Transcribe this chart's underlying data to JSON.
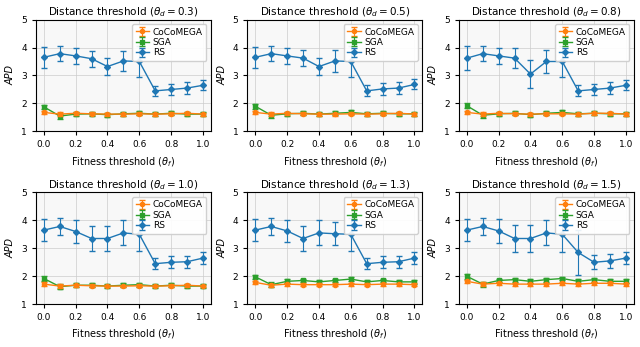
{
  "subplots": [
    {
      "title": "Distance threshold ($\\theta_d = 0.3$)",
      "x": [
        0.0,
        0.1,
        0.2,
        0.3,
        0.4,
        0.5,
        0.6,
        0.7,
        0.8,
        0.9,
        1.0
      ],
      "cocoemega_y": [
        1.68,
        1.62,
        1.65,
        1.63,
        1.62,
        1.62,
        1.63,
        1.62,
        1.63,
        1.65,
        1.62
      ],
      "cocoemega_err": [
        0.06,
        0.06,
        0.05,
        0.05,
        0.05,
        0.05,
        0.05,
        0.05,
        0.05,
        0.05,
        0.05
      ],
      "sga_y": [
        1.88,
        1.55,
        1.62,
        1.63,
        1.6,
        1.63,
        1.65,
        1.62,
        1.65,
        1.62,
        1.62
      ],
      "sga_err": [
        0.08,
        0.09,
        0.07,
        0.07,
        0.07,
        0.07,
        0.07,
        0.07,
        0.07,
        0.07,
        0.07
      ],
      "rs_y": [
        3.65,
        3.78,
        3.7,
        3.6,
        3.32,
        3.52,
        3.5,
        2.45,
        2.5,
        2.55,
        2.65
      ],
      "rs_err": [
        0.38,
        0.28,
        0.28,
        0.28,
        0.3,
        0.35,
        0.55,
        0.18,
        0.2,
        0.2,
        0.18
      ]
    },
    {
      "title": "Distance threshold ($\\theta_d = 0.5$)",
      "x": [
        0.0,
        0.1,
        0.2,
        0.3,
        0.4,
        0.5,
        0.6,
        0.7,
        0.8,
        0.9,
        1.0
      ],
      "cocoemega_y": [
        1.68,
        1.62,
        1.65,
        1.63,
        1.62,
        1.62,
        1.63,
        1.62,
        1.63,
        1.65,
        1.62
      ],
      "cocoemega_err": [
        0.06,
        0.06,
        0.05,
        0.05,
        0.05,
        0.05,
        0.05,
        0.05,
        0.05,
        0.05,
        0.05
      ],
      "sga_y": [
        1.9,
        1.58,
        1.63,
        1.65,
        1.62,
        1.65,
        1.68,
        1.63,
        1.65,
        1.63,
        1.63
      ],
      "sga_err": [
        0.08,
        0.09,
        0.07,
        0.07,
        0.07,
        0.07,
        0.07,
        0.07,
        0.07,
        0.07,
        0.07
      ],
      "rs_y": [
        3.65,
        3.78,
        3.7,
        3.62,
        3.32,
        3.52,
        3.5,
        2.45,
        2.52,
        2.55,
        2.68
      ],
      "rs_err": [
        0.38,
        0.28,
        0.3,
        0.28,
        0.32,
        0.4,
        0.55,
        0.2,
        0.2,
        0.2,
        0.18
      ]
    },
    {
      "title": "Distance threshold ($\\theta_d = 0.8$)",
      "x": [
        0.0,
        0.1,
        0.2,
        0.3,
        0.4,
        0.5,
        0.6,
        0.7,
        0.8,
        0.9,
        1.0
      ],
      "cocoemega_y": [
        1.68,
        1.62,
        1.65,
        1.63,
        1.62,
        1.63,
        1.63,
        1.62,
        1.65,
        1.65,
        1.62
      ],
      "cocoemega_err": [
        0.06,
        0.06,
        0.05,
        0.05,
        0.05,
        0.05,
        0.05,
        0.05,
        0.05,
        0.05,
        0.05
      ],
      "sga_y": [
        1.92,
        1.58,
        1.63,
        1.65,
        1.6,
        1.65,
        1.68,
        1.63,
        1.65,
        1.63,
        1.63
      ],
      "sga_err": [
        0.08,
        0.09,
        0.07,
        0.07,
        0.07,
        0.07,
        0.07,
        0.07,
        0.07,
        0.07,
        0.07
      ],
      "rs_y": [
        3.62,
        3.78,
        3.7,
        3.62,
        3.05,
        3.5,
        3.5,
        2.45,
        2.5,
        2.55,
        2.65
      ],
      "rs_err": [
        0.42,
        0.28,
        0.3,
        0.35,
        0.5,
        0.4,
        0.55,
        0.2,
        0.2,
        0.2,
        0.18
      ]
    },
    {
      "title": "Distance threshold ($\\theta_d = 1.0$)",
      "x": [
        0.0,
        0.1,
        0.2,
        0.3,
        0.4,
        0.5,
        0.6,
        0.7,
        0.8,
        0.9,
        1.0
      ],
      "cocoemega_y": [
        1.72,
        1.65,
        1.68,
        1.66,
        1.65,
        1.65,
        1.66,
        1.65,
        1.66,
        1.68,
        1.65
      ],
      "cocoemega_err": [
        0.06,
        0.06,
        0.05,
        0.05,
        0.05,
        0.05,
        0.05,
        0.05,
        0.05,
        0.05,
        0.05
      ],
      "sga_y": [
        1.92,
        1.63,
        1.68,
        1.68,
        1.65,
        1.68,
        1.7,
        1.65,
        1.68,
        1.65,
        1.65
      ],
      "sga_err": [
        0.08,
        0.09,
        0.07,
        0.07,
        0.07,
        0.07,
        0.07,
        0.07,
        0.07,
        0.07,
        0.07
      ],
      "rs_y": [
        3.65,
        3.78,
        3.6,
        3.35,
        3.35,
        3.55,
        3.5,
        2.45,
        2.5,
        2.52,
        2.65
      ],
      "rs_err": [
        0.4,
        0.3,
        0.4,
        0.45,
        0.45,
        0.45,
        0.6,
        0.2,
        0.22,
        0.22,
        0.2
      ]
    },
    {
      "title": "Distance threshold ($\\theta_d = 1.3$)",
      "x": [
        0.0,
        0.1,
        0.2,
        0.3,
        0.4,
        0.5,
        0.6,
        0.7,
        0.8,
        0.9,
        1.0
      ],
      "cocoemega_y": [
        1.78,
        1.68,
        1.72,
        1.7,
        1.7,
        1.7,
        1.72,
        1.7,
        1.72,
        1.72,
        1.7
      ],
      "cocoemega_err": [
        0.06,
        0.06,
        0.05,
        0.05,
        0.05,
        0.05,
        0.05,
        0.05,
        0.05,
        0.05,
        0.05
      ],
      "sga_y": [
        1.98,
        1.7,
        1.82,
        1.85,
        1.8,
        1.85,
        1.9,
        1.8,
        1.85,
        1.8,
        1.8
      ],
      "sga_err": [
        0.08,
        0.09,
        0.07,
        0.07,
        0.07,
        0.07,
        0.07,
        0.07,
        0.07,
        0.07,
        0.07
      ],
      "rs_y": [
        3.65,
        3.78,
        3.62,
        3.35,
        3.55,
        3.52,
        3.5,
        2.45,
        2.5,
        2.52,
        2.65
      ],
      "rs_err": [
        0.4,
        0.3,
        0.38,
        0.45,
        0.45,
        0.42,
        0.6,
        0.2,
        0.22,
        0.22,
        0.2
      ]
    },
    {
      "title": "Distance threshold ($\\theta_d = 1.5$)",
      "x": [
        0.0,
        0.1,
        0.2,
        0.3,
        0.4,
        0.5,
        0.6,
        0.7,
        0.8,
        0.9,
        1.0
      ],
      "cocoemega_y": [
        1.82,
        1.72,
        1.75,
        1.72,
        1.72,
        1.72,
        1.75,
        1.72,
        1.75,
        1.75,
        1.72
      ],
      "cocoemega_err": [
        0.06,
        0.06,
        0.05,
        0.05,
        0.05,
        0.05,
        0.05,
        0.05,
        0.05,
        0.05,
        0.05
      ],
      "sga_y": [
        2.0,
        1.72,
        1.85,
        1.88,
        1.82,
        1.88,
        1.92,
        1.82,
        1.88,
        1.82,
        1.82
      ],
      "sga_err": [
        0.08,
        0.09,
        0.07,
        0.07,
        0.07,
        0.07,
        0.07,
        0.07,
        0.07,
        0.07,
        0.07
      ],
      "rs_y": [
        3.65,
        3.78,
        3.62,
        3.35,
        3.35,
        3.55,
        3.5,
        2.85,
        2.5,
        2.55,
        2.65
      ],
      "rs_err": [
        0.4,
        0.3,
        0.42,
        0.48,
        0.48,
        0.45,
        0.62,
        0.8,
        0.25,
        0.25,
        0.22
      ]
    }
  ],
  "cocoemega_color": "#ff7f0e",
  "sga_color": "#2ca02c",
  "rs_color": "#1f77b4",
  "xlabel": "Fitness threshold ($\\theta_f$)",
  "ylabel": "APD",
  "ylim": [
    1,
    5
  ],
  "yticks": [
    1,
    2,
    3,
    4,
    5
  ],
  "xlim": [
    -0.05,
    1.05
  ],
  "xticks": [
    0.0,
    0.2,
    0.4,
    0.6,
    0.8,
    1.0
  ],
  "legend_labels": [
    "CoCoMEGA",
    "SGA",
    "RS"
  ],
  "marker_cocoemega": "o",
  "marker_sga": "s",
  "marker_rs": "D",
  "linewidth": 1.0,
  "markersize": 3.0,
  "capsize": 2.0,
  "elinewidth": 0.8,
  "title_fontsize": 7.5,
  "label_fontsize": 7.0,
  "tick_fontsize": 6.5,
  "legend_fontsize": 6.5
}
